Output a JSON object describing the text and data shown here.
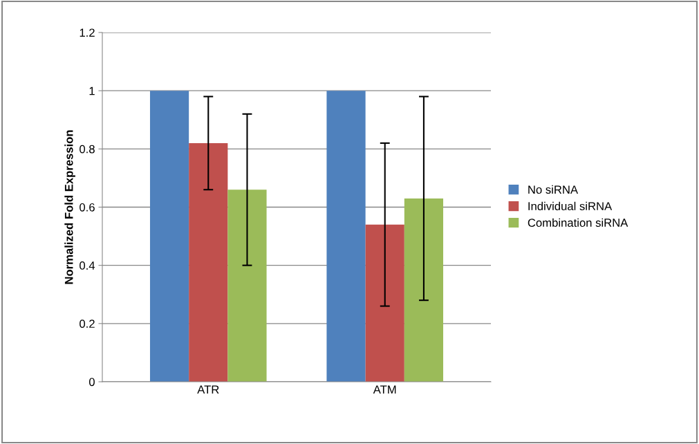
{
  "chart_data": {
    "type": "bar",
    "ylabel": "Normalized Fold Expression",
    "categories": [
      "ATR",
      "ATM"
    ],
    "series": [
      {
        "name": "No siRNA",
        "color": "#4f81bd",
        "values": [
          1.0,
          1.0
        ]
      },
      {
        "name": "Individual siRNA",
        "color": "#c0504d",
        "values": [
          0.82,
          0.54
        ],
        "errors": [
          0.16,
          0.28
        ]
      },
      {
        "name": "Combination siRNA",
        "color": "#9bbb59",
        "values": [
          0.66,
          0.63
        ],
        "errors": [
          0.26,
          0.35
        ]
      }
    ],
    "ylim": [
      0,
      1.2
    ],
    "yticks": [
      0,
      0.2,
      0.4,
      0.6,
      0.8,
      1,
      1.2
    ],
    "grid": "y",
    "legend": "right"
  }
}
